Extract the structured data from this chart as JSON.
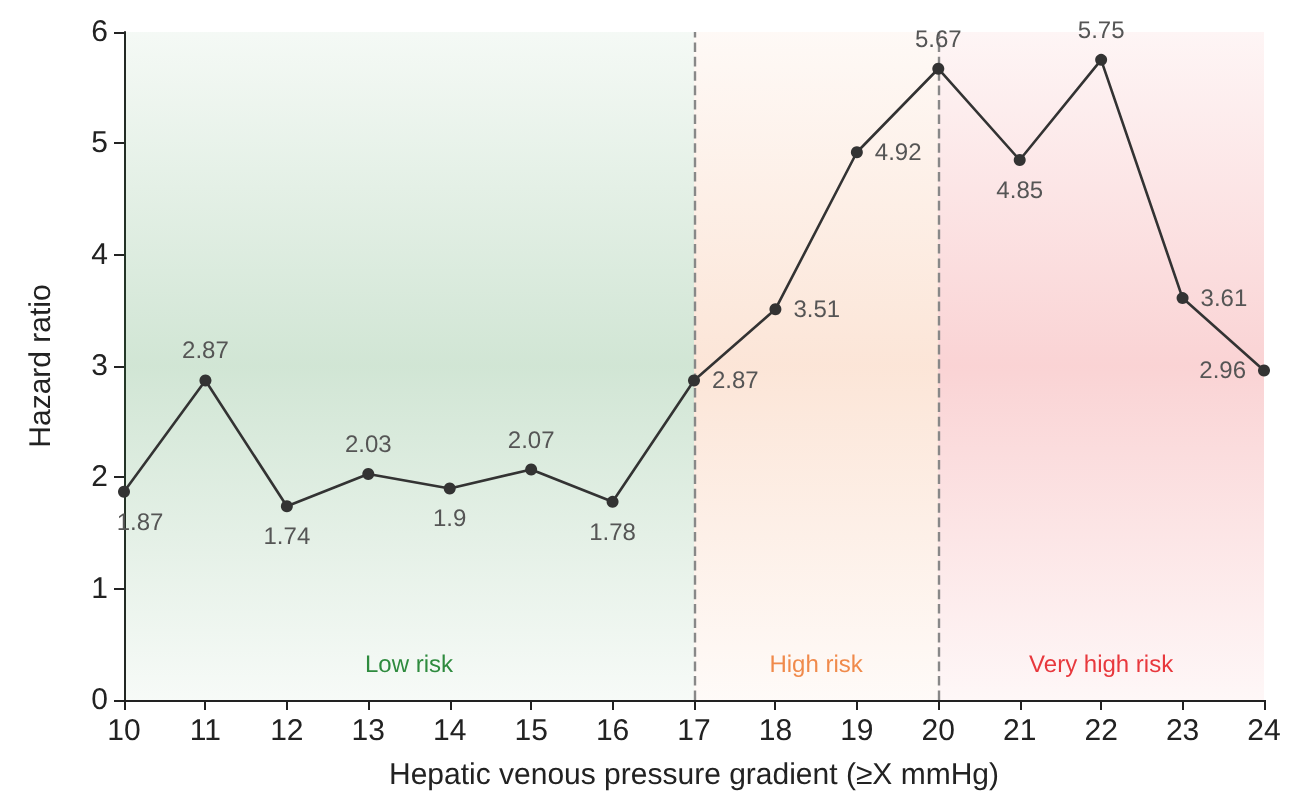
{
  "chart_data": {
    "type": "line",
    "xlabel": "Hepatic venous pressure gradient (≥X mmHg)",
    "ylabel": "Hazard ratio",
    "x": [
      10,
      11,
      12,
      13,
      14,
      15,
      16,
      17,
      18,
      19,
      20,
      21,
      22,
      23,
      24
    ],
    "series": [
      {
        "color": "#333333",
        "values": [
          1.87,
          2.87,
          1.74,
          2.03,
          1.9,
          2.07,
          1.78,
          2.87,
          3.51,
          4.92,
          5.67,
          4.85,
          5.75,
          3.61,
          2.96
        ]
      }
    ],
    "xlim": [
      10,
      24
    ],
    "xticks": [
      10,
      11,
      12,
      13,
      14,
      15,
      16,
      17,
      18,
      19,
      20,
      21,
      22,
      23,
      24
    ],
    "ylim": [
      0,
      6
    ],
    "yticks": [
      0,
      1,
      2,
      3,
      4,
      5,
      6
    ],
    "bands": [
      {
        "axis": "x",
        "from": 10,
        "to": 17,
        "label": "Low risk",
        "color": "#2e8b3e"
      },
      {
        "axis": "x",
        "from": 17,
        "to": 20,
        "label": "High risk",
        "color": "#f08a4b"
      },
      {
        "axis": "x",
        "from": 20,
        "to": 24,
        "label": "Very high risk",
        "color": "#e8383d"
      }
    ],
    "ref_lines": [
      {
        "axis": "x",
        "value": 17,
        "color": "#888888",
        "line_style": "dashed"
      },
      {
        "axis": "x",
        "value": 20,
        "color": "#888888",
        "line_style": "dashed"
      }
    ],
    "data_labels": true,
    "marker": "circle",
    "grid": false,
    "line_style": "solid"
  }
}
